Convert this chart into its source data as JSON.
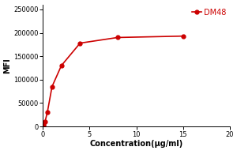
{
  "x": [
    0.0,
    0.06,
    0.12,
    0.25,
    0.5,
    1.0,
    2.0,
    4.0,
    8.0,
    15.0
  ],
  "y": [
    0,
    2000,
    5000,
    10000,
    30000,
    85000,
    130000,
    178000,
    190000,
    193000
  ],
  "color": "#cc0000",
  "marker": "o",
  "markersize": 3.5,
  "linewidth": 1.2,
  "label": "DM48",
  "xlabel": "Concentration(μg/ml)",
  "ylabel": "MFI",
  "xlim": [
    0,
    20
  ],
  "ylim": [
    0,
    260000
  ],
  "yticks": [
    0,
    50000,
    100000,
    150000,
    200000,
    250000
  ],
  "xticks": [
    0,
    5,
    10,
    15,
    20
  ],
  "background_color": "#ffffff",
  "axis_fontsize": 7,
  "tick_fontsize": 6,
  "legend_fontsize": 7
}
